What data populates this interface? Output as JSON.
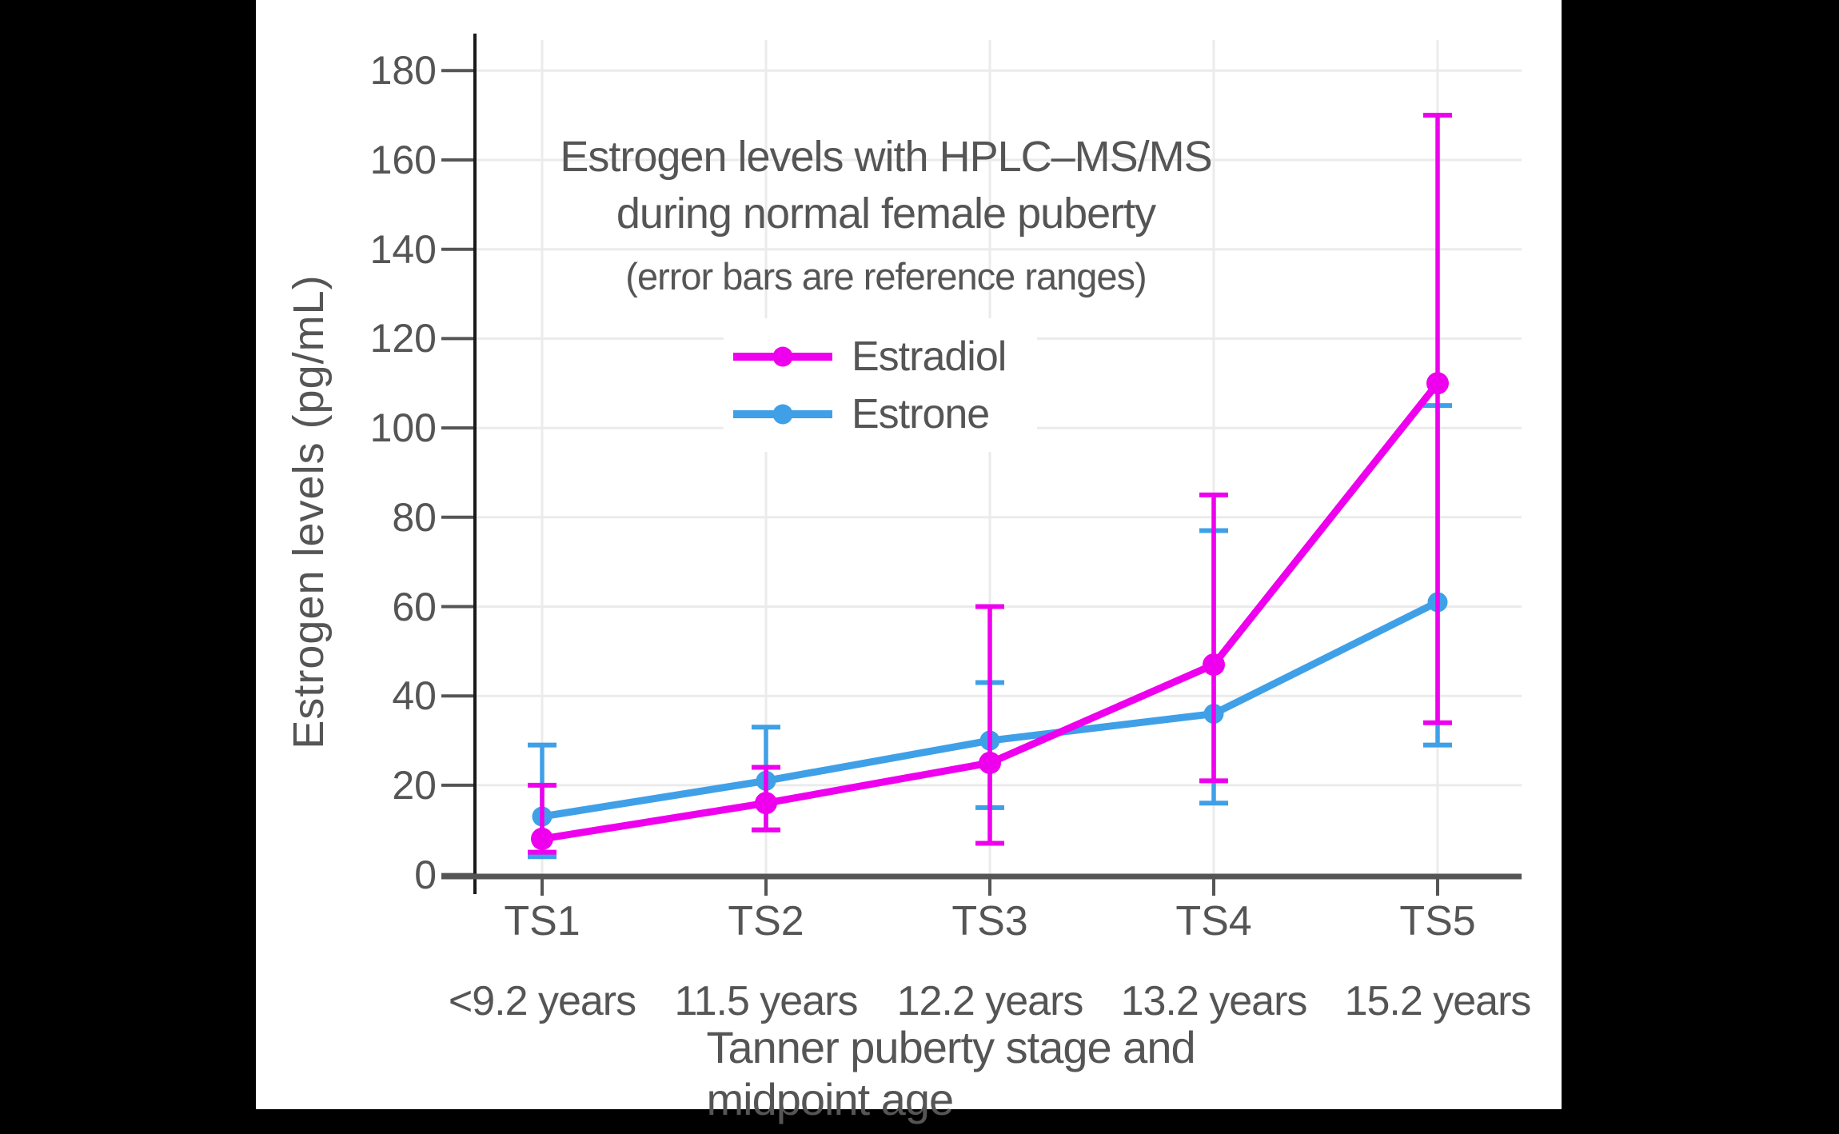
{
  "window": {
    "letterbox_color": "#000000",
    "canvas_color": "#ffffff"
  },
  "text_color": "#555555",
  "chart_data": {
    "type": "line",
    "title_line1": "Estrogen levels with HPLC–MS/MS",
    "title_line2": "during normal female puberty",
    "subtitle": "(error bars are reference ranges)",
    "xlabel": "Tanner puberty stage and midpoint age",
    "ylabel": "Estrogen levels (pg/mL)",
    "categories": [
      "TS1",
      "TS2",
      "TS3",
      "TS4",
      "TS5"
    ],
    "category_sublabels": [
      "<9.2 years",
      "11.5 years",
      "12.2 years",
      "13.2 years",
      "15.2 years"
    ],
    "ylim": [
      0,
      180
    ],
    "yticks": [
      0,
      20,
      40,
      60,
      80,
      100,
      120,
      140,
      160,
      180
    ],
    "grid": true,
    "legend_position": "upper-left-of-center",
    "error_bar_meaning": "reference ranges",
    "series": [
      {
        "name": "Estradiol",
        "color": "#EE00EE",
        "values": [
          8,
          16,
          25,
          47,
          110
        ],
        "range_low": [
          5,
          10,
          7,
          21,
          34
        ],
        "range_high": [
          20,
          24,
          60,
          85,
          170
        ]
      },
      {
        "name": "Estrone",
        "color": "#3FA0E8",
        "values": [
          13,
          21,
          30,
          36,
          61
        ],
        "range_low": [
          4,
          10,
          15,
          16,
          29
        ],
        "range_high": [
          29,
          33,
          43,
          77,
          105
        ]
      }
    ],
    "style": {
      "grid_color": "#ebebeb",
      "axis_line_color": "#1a1a1a",
      "baseline_color": "#555555",
      "tick_color": "#555555"
    }
  }
}
